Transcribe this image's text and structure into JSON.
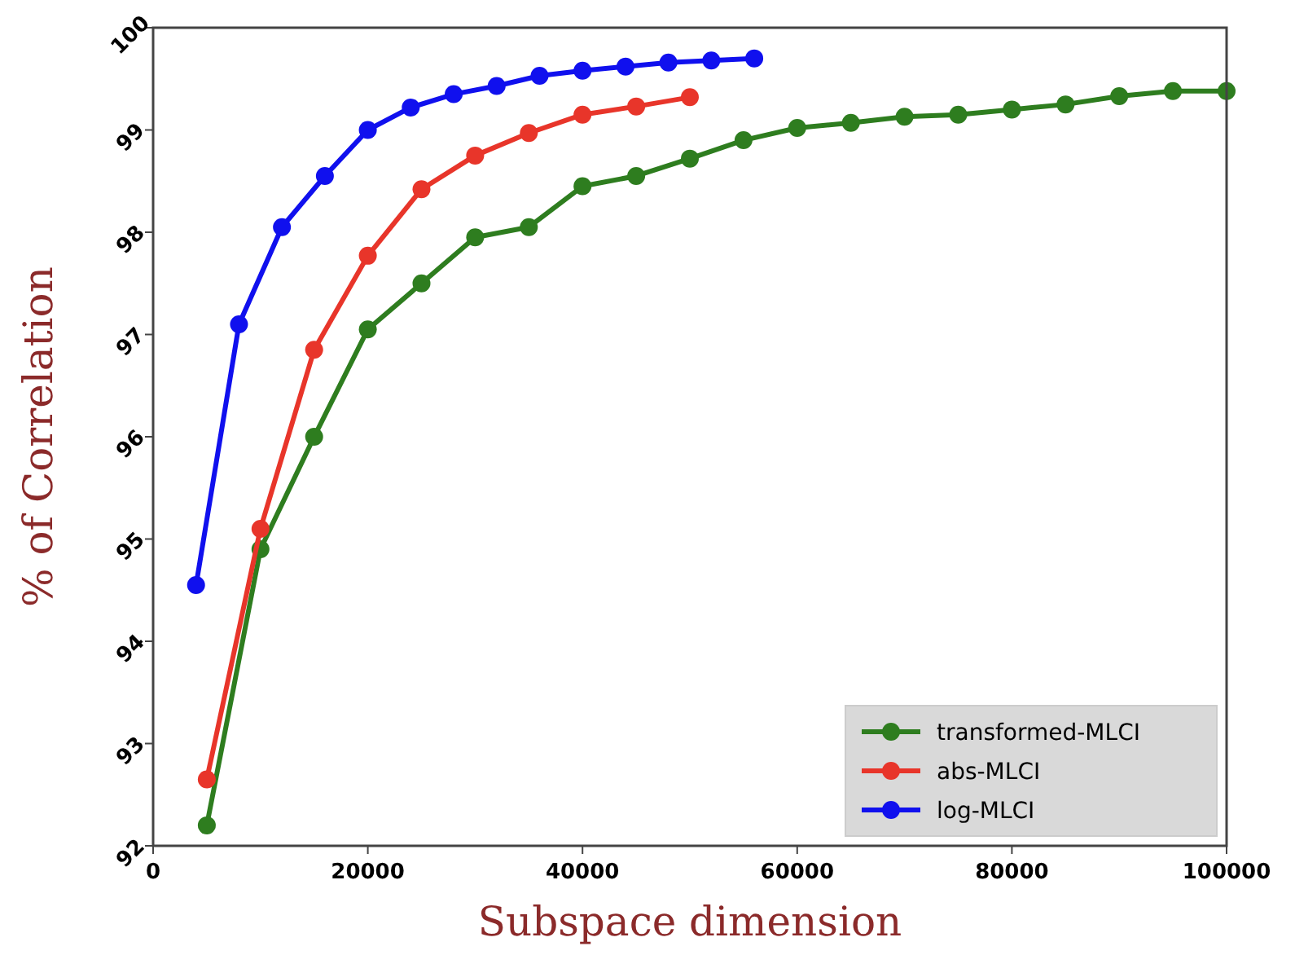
{
  "chart_data": {
    "type": "line",
    "xlabel": "Subspace dimension",
    "ylabel": "% of Correlation",
    "xlim": [
      0,
      100000
    ],
    "ylim": [
      92,
      100
    ],
    "xticks": [
      0,
      20000,
      40000,
      60000,
      80000,
      100000
    ],
    "yticks": [
      92,
      93,
      94,
      95,
      96,
      97,
      98,
      99,
      100
    ],
    "legend": "bottom right",
    "marker": "circle",
    "line_style": "solid",
    "grid": false,
    "series": [
      {
        "name": "transformed-MLCI",
        "color": "#2e7d1f",
        "x": [
          5000,
          10000,
          15000,
          20000,
          25000,
          30000,
          35000,
          40000,
          45000,
          50000,
          55000,
          60000,
          65000,
          70000,
          75000,
          80000,
          85000,
          90000,
          95000,
          100000
        ],
        "values": [
          92.2,
          94.9,
          96.0,
          97.05,
          97.5,
          97.95,
          98.05,
          98.45,
          98.55,
          98.72,
          98.9,
          99.02,
          99.07,
          99.13,
          99.15,
          99.2,
          99.25,
          99.33,
          99.38,
          99.38
        ]
      },
      {
        "name": "abs-MLCI",
        "color": "#e8352a",
        "x": [
          5000,
          10000,
          15000,
          20000,
          25000,
          30000,
          35000,
          40000,
          45000,
          50000
        ],
        "values": [
          92.65,
          95.1,
          96.85,
          97.77,
          98.42,
          98.75,
          98.97,
          99.15,
          99.23,
          99.32
        ]
      },
      {
        "name": "log-MLCI",
        "color": "#1010ee",
        "x": [
          4000,
          8000,
          12000,
          16000,
          20000,
          24000,
          28000,
          32000,
          36000,
          40000,
          44000,
          48000,
          52000,
          56000
        ],
        "values": [
          94.55,
          97.1,
          98.05,
          98.55,
          99.0,
          99.22,
          99.35,
          99.43,
          99.53,
          99.58,
          99.62,
          99.66,
          99.68,
          99.7
        ]
      }
    ]
  }
}
